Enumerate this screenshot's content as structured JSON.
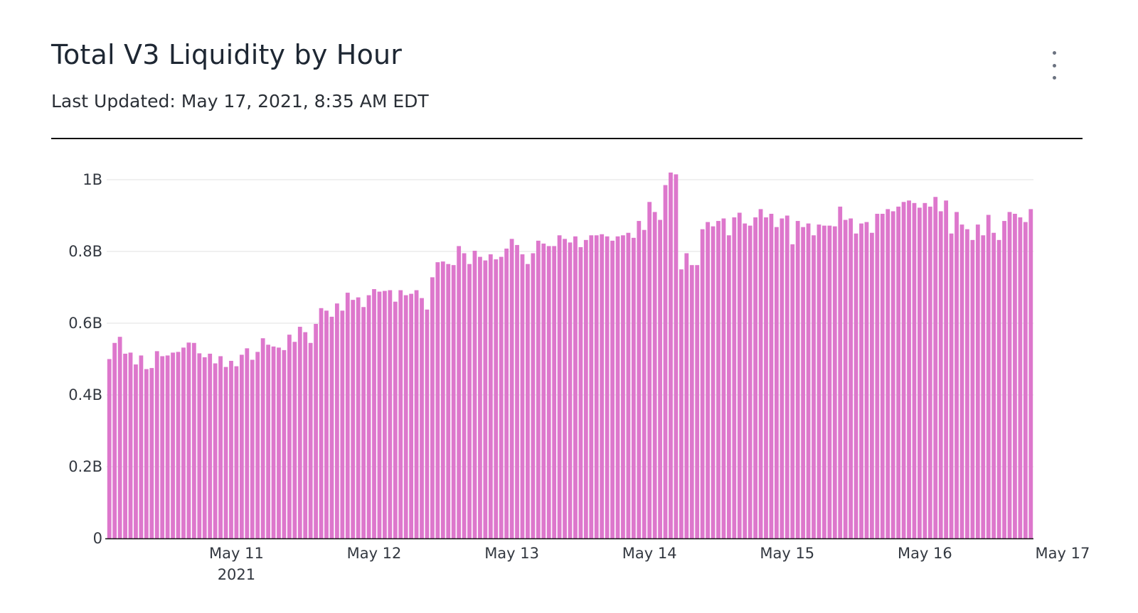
{
  "header": {
    "title": "Total V3 Liquidity by Hour",
    "subtitle": "Last Updated: May 17, 2021, 8:35 AM EDT",
    "menu_icon": "more-vertical-icon"
  },
  "colors": {
    "bar": "#dd77cc",
    "grid": "#e8e8e8",
    "axis": "#111111"
  },
  "chart_data": {
    "type": "bar",
    "title": "Total V3 Liquidity by Hour",
    "xlabel": "",
    "ylabel": "",
    "ylim": [
      0,
      1000000000.0
    ],
    "y_ticks": [
      {
        "value": 0,
        "label": "0"
      },
      {
        "value": 200000000.0,
        "label": "0.2B"
      },
      {
        "value": 400000000.0,
        "label": "0.4B"
      },
      {
        "value": 600000000.0,
        "label": "0.6B"
      },
      {
        "value": 800000000.0,
        "label": "0.8B"
      },
      {
        "value": 1000000000.0,
        "label": "1B"
      }
    ],
    "x_ticks": [
      {
        "index": 24,
        "label": "May 11",
        "sublabel": "2021"
      },
      {
        "index": 50,
        "label": "May 12",
        "sublabel": ""
      },
      {
        "index": 76,
        "label": "May 13",
        "sublabel": ""
      },
      {
        "index": 102,
        "label": "May 14",
        "sublabel": ""
      },
      {
        "index": 128,
        "label": "May 15",
        "sublabel": ""
      },
      {
        "index": 154,
        "label": "May 16",
        "sublabel": ""
      },
      {
        "index": 180,
        "label": "May 17",
        "sublabel": ""
      }
    ],
    "series": [
      {
        "name": "Total V3 Liquidity",
        "unit": "USD",
        "values": [
          500000000,
          545000000,
          562000000,
          515000000,
          518000000,
          485000000,
          510000000,
          472000000,
          475000000,
          522000000,
          508000000,
          510000000,
          518000000,
          520000000,
          532000000,
          546000000,
          545000000,
          516000000,
          505000000,
          515000000,
          488000000,
          508000000,
          478000000,
          495000000,
          480000000,
          512000000,
          530000000,
          498000000,
          520000000,
          558000000,
          540000000,
          535000000,
          532000000,
          525000000,
          568000000,
          548000000,
          590000000,
          575000000,
          545000000,
          598000000,
          642000000,
          635000000,
          618000000,
          655000000,
          635000000,
          685000000,
          665000000,
          672000000,
          645000000,
          678000000,
          695000000,
          688000000,
          690000000,
          692000000,
          660000000,
          692000000,
          678000000,
          682000000,
          692000000,
          670000000,
          638000000,
          728000000,
          770000000,
          772000000,
          765000000,
          762000000,
          815000000,
          795000000,
          765000000,
          802000000,
          785000000,
          775000000,
          792000000,
          778000000,
          785000000,
          808000000,
          835000000,
          818000000,
          792000000,
          765000000,
          795000000,
          830000000,
          822000000,
          815000000,
          815000000,
          845000000,
          835000000,
          825000000,
          842000000,
          812000000,
          832000000,
          845000000,
          845000000,
          848000000,
          842000000,
          830000000,
          842000000,
          845000000,
          852000000,
          838000000,
          885000000,
          860000000,
          938000000,
          910000000,
          888000000,
          985000000,
          1020000000,
          1015000000,
          750000000,
          795000000,
          762000000,
          762000000,
          862000000,
          882000000,
          870000000,
          885000000,
          892000000,
          845000000,
          895000000,
          908000000,
          878000000,
          872000000,
          895000000,
          918000000,
          895000000,
          905000000,
          868000000,
          892000000,
          900000000,
          820000000,
          885000000,
          868000000,
          878000000,
          845000000,
          875000000,
          872000000,
          872000000,
          870000000,
          925000000,
          888000000,
          892000000,
          850000000,
          878000000,
          882000000,
          852000000,
          905000000,
          905000000,
          918000000,
          912000000,
          925000000,
          938000000,
          942000000,
          935000000,
          922000000,
          935000000,
          925000000,
          952000000,
          912000000,
          942000000,
          850000000,
          910000000,
          875000000,
          862000000,
          832000000,
          875000000,
          845000000,
          902000000,
          852000000,
          832000000,
          885000000,
          910000000,
          905000000,
          895000000,
          882000000,
          918000000
        ]
      }
    ]
  }
}
